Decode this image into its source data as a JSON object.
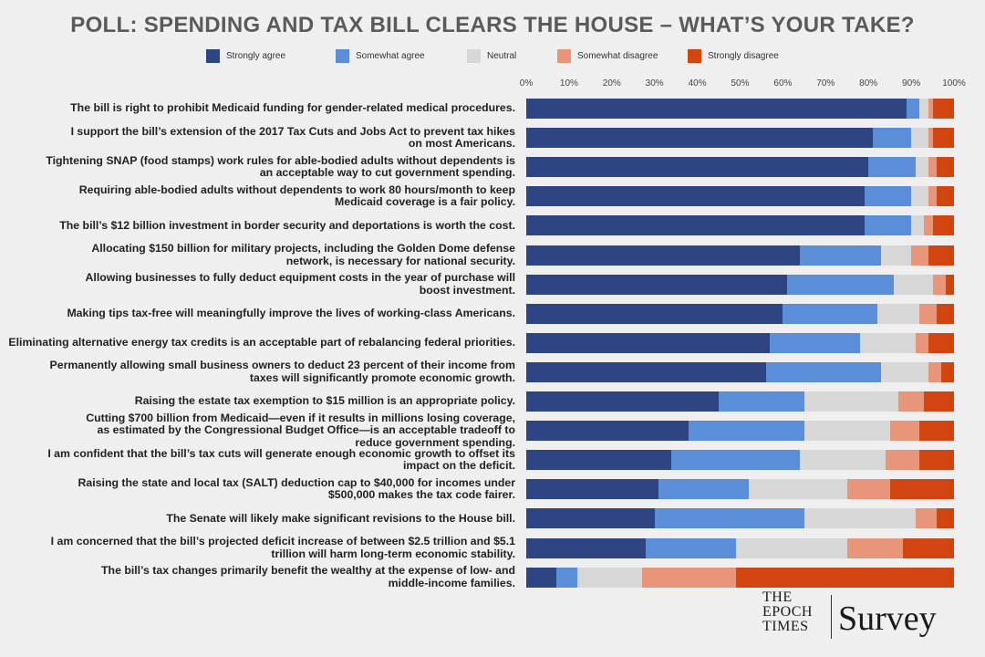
{
  "title": "POLL: SPENDING AND TAX BILL CLEARS THE HOUSE – WHAT’S YOUR TAKE?",
  "logo": {
    "line1": "THE",
    "line2": "EPOCH",
    "line3": "TIMES",
    "survey": "Survey"
  },
  "colors": {
    "Strongly agree": "#2e4583",
    "Somewhat agree": "#5b8ed8",
    "Neutral": "#d7d7d7",
    "Somewhat disagree": "#e8957a",
    "Strongly disagree": "#d34510"
  },
  "chart_data": {
    "type": "bar",
    "orientation": "horizontal-stacked-100",
    "xlim": [
      0,
      100
    ],
    "tick_labels": [
      "0%",
      "10%",
      "20%",
      "30%",
      "40%",
      "50%",
      "60%",
      "70%",
      "80%",
      "90%",
      "100%"
    ],
    "legend": [
      "Strongly agree",
      "Somewhat agree",
      "Neutral",
      "Somewhat disagree",
      "Strongly disagree"
    ],
    "legend_position": "top",
    "categories": [
      "The bill is right to prohibit Medicaid funding for gender-related medical procedures.",
      "I support the bill’s extension of the 2017 Tax Cuts and Jobs Act to prevent tax hikes on most Americans.",
      "Tightening SNAP (food stamps) work rules for able-bodied adults without dependents is an acceptable way to cut government spending.",
      "Requiring able-bodied adults without dependents to work 80 hours/month to keep Medicaid coverage is a fair policy.",
      "The bill’s $12 billion investment in border security and deportations is worth the cost.",
      "Allocating $150 billion for military projects, including the Golden Dome defense network, is necessary for national security.",
      "Allowing businesses to fully deduct equipment costs in the year of purchase will boost investment.",
      "Making tips tax-free will meaningfully improve the lives of working-class Americans.",
      "Eliminating alternative energy tax credits is an acceptable part of rebalancing federal priorities.",
      "Permanently allowing small business owners to deduct 23 percent of their income from taxes will significantly promote economic growth.",
      "Raising the estate tax exemption to $15 million is an appropriate policy.",
      "Cutting $700 billion from Medicaid—even if it results in millions losing coverage, as estimated by the Congressional Budget Office—is an acceptable tradeoff to reduce government spending.",
      "I am confident that the bill’s tax cuts will generate enough economic growth to offset its impact on the deficit.",
      "Raising the state and local tax (SALT) deduction cap to $40,000 for incomes under $500,000 makes the tax code fairer.",
      "The Senate will likely make significant revisions to the House bill.",
      "I am concerned that the bill’s projected deficit increase of between $2.5 trillion and $5.1 trillion will harm long-term economic stability.",
      "The bill’s tax changes primarily benefit the wealthy at the expense of low- and middle-income families."
    ],
    "category_lines": [
      [
        "The bill is right to prohibit Medicaid funding for gender-related medical procedures."
      ],
      [
        "I support the bill’s extension of the 2017 Tax Cuts and Jobs Act to prevent tax hikes",
        "on most Americans."
      ],
      [
        "Tightening SNAP (food stamps) work rules for able-bodied adults without dependents is",
        "an acceptable way to cut government spending."
      ],
      [
        "Requiring able-bodied adults without dependents to work 80 hours/month to keep",
        "Medicaid coverage is a fair policy."
      ],
      [
        "The bill’s $12 billion investment in border security and deportations is worth the cost."
      ],
      [
        "Allocating $150 billion for military projects, including the Golden Dome defense",
        "network, is necessary for national security."
      ],
      [
        "Allowing businesses to fully deduct equipment costs in the year of purchase will",
        "boost investment."
      ],
      [
        "Making tips tax-free will meaningfully improve the lives of working-class Americans."
      ],
      [
        "Eliminating alternative energy tax credits is an acceptable part of rebalancing federal priorities."
      ],
      [
        "Permanently allowing small business owners to deduct 23 percent of their income from",
        "taxes will significantly promote economic growth."
      ],
      [
        "Raising the estate tax exemption to $15 million is an appropriate policy."
      ],
      [
        "Cutting $700 billion from Medicaid—even if it results in millions losing coverage,",
        "as estimated by the Congressional Budget Office—is an acceptable tradeoff to",
        "reduce government spending."
      ],
      [
        "I am confident that the bill’s tax cuts will generate enough economic growth to offset its",
        "impact on the deficit."
      ],
      [
        "Raising the state and local tax (SALT) deduction cap to $40,000 for incomes under",
        "$500,000 makes the tax code fairer."
      ],
      [
        "The Senate will likely make significant revisions to the House bill."
      ],
      [
        "I am concerned that the bill’s projected deficit increase of between $2.5 trillion and $5.1",
        "trillion will harm long-term economic stability."
      ],
      [
        "The bill’s tax changes primarily benefit the wealthy at the expense of low- and",
        "middle-income families."
      ]
    ],
    "series": [
      {
        "name": "Strongly agree",
        "values": [
          89,
          81,
          80,
          79,
          79,
          64,
          61,
          60,
          57,
          56,
          45,
          38,
          34,
          31,
          30,
          28,
          7
        ]
      },
      {
        "name": "Somewhat agree",
        "values": [
          3,
          9,
          11,
          11,
          11,
          19,
          25,
          22,
          21,
          27,
          20,
          27,
          30,
          21,
          35,
          21,
          5
        ]
      },
      {
        "name": "Neutral",
        "values": [
          2,
          4,
          3,
          4,
          3,
          7,
          9,
          10,
          13,
          11,
          22,
          20,
          20,
          23,
          26,
          26,
          15
        ]
      },
      {
        "name": "Somewhat disagree",
        "values": [
          1,
          1,
          2,
          2,
          2,
          4,
          3,
          4,
          3,
          3,
          6,
          7,
          8,
          10,
          5,
          13,
          22
        ]
      },
      {
        "name": "Strongly disagree",
        "values": [
          5,
          5,
          4,
          4,
          5,
          6,
          2,
          4,
          6,
          3,
          7,
          8,
          8,
          15,
          4,
          12,
          51
        ]
      }
    ]
  }
}
